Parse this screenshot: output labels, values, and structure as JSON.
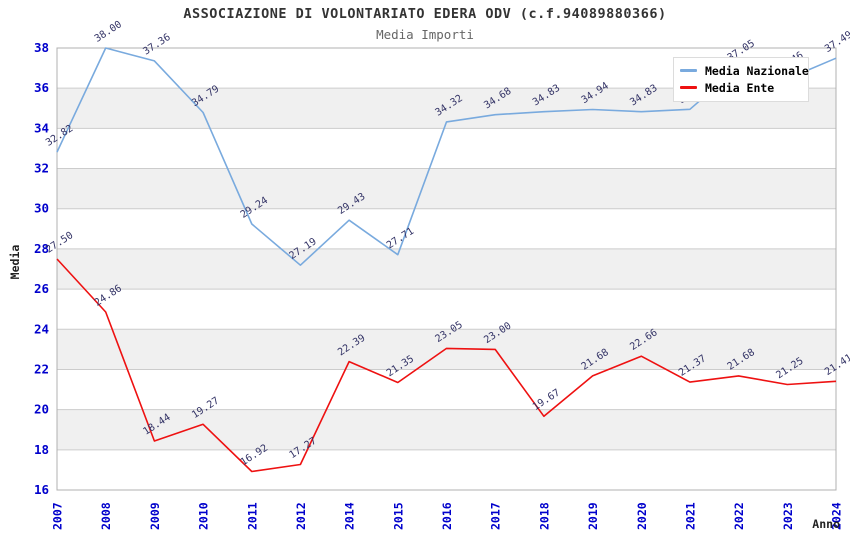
{
  "page": {
    "title": "ASSOCIAZIONE DI VOLONTARIATO EDERA ODV (c.f.94089880366)",
    "subtitle": "Media Importi"
  },
  "axes": {
    "y_label": "Media",
    "x_label": "Anno",
    "y_ticks": [
      16,
      18,
      20,
      22,
      24,
      26,
      28,
      30,
      32,
      34,
      36,
      38
    ],
    "tick_color": "#0000cc"
  },
  "legend": {
    "items": [
      {
        "label": "Media Nazionale",
        "color": "#79aade"
      },
      {
        "label": "Media Ente",
        "color": "#ee1111"
      }
    ]
  },
  "chart_data": {
    "type": "line",
    "title": "ASSOCIAZIONE DI VOLONTARIATO EDERA ODV (c.f.94089880366)",
    "subtitle": "Media Importi",
    "xlabel": "Anno",
    "ylabel": "Media",
    "x": [
      "2007",
      "2008",
      "2009",
      "2010",
      "2011",
      "2012",
      "2014",
      "2015",
      "2016",
      "2017",
      "2018",
      "2019",
      "2020",
      "2021",
      "2022",
      "2023",
      "2024"
    ],
    "series": [
      {
        "name": "Media Nazionale",
        "color": "#79aade",
        "values": [
          32.82,
          38.0,
          37.36,
          34.79,
          29.24,
          27.19,
          29.43,
          27.71,
          34.32,
          34.68,
          34.83,
          34.94,
          34.83,
          34.95,
          37.05,
          36.46,
          37.49
        ]
      },
      {
        "name": "Media Ente",
        "color": "#ee1111",
        "values": [
          27.5,
          24.86,
          18.44,
          19.27,
          16.92,
          17.27,
          22.39,
          21.35,
          23.05,
          23.0,
          19.67,
          21.68,
          22.66,
          21.37,
          21.68,
          21.25,
          21.41
        ]
      }
    ],
    "ylim": [
      16,
      38
    ],
    "grid": true,
    "band_colors": [
      "#ffffff",
      "#f0f0f0"
    ],
    "gridline_color": "#cccccc",
    "border_color": "#b0b0b0",
    "point_label_color": "#333366",
    "label_format": "0.00",
    "legend_position": "top-right"
  }
}
